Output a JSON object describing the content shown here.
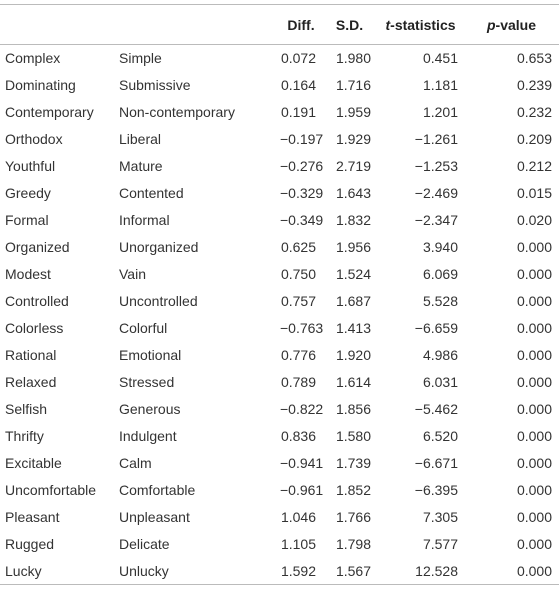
{
  "table": {
    "header": [
      "Diff.",
      "S.D.",
      {
        "italic": "t",
        "text": "-statistics"
      },
      {
        "italic": "p",
        "text": "-value"
      }
    ],
    "rows": [
      [
        "Complex",
        "Simple",
        "0.072",
        "1.980",
        "0.451",
        "0.653"
      ],
      [
        "Dominating",
        "Submissive",
        "0.164",
        "1.716",
        "1.181",
        "0.239"
      ],
      [
        "Contemporary",
        "Non-contemporary",
        "0.191",
        "1.959",
        "1.201",
        "0.232"
      ],
      [
        "Orthodox",
        "Liberal",
        "−0.197",
        "1.929",
        "−1.261",
        "0.209"
      ],
      [
        "Youthful",
        "Mature",
        "−0.276",
        "2.719",
        "−1.253",
        "0.212"
      ],
      [
        "Greedy",
        "Contented",
        "−0.329",
        "1.643",
        "−2.469",
        "0.015"
      ],
      [
        "Formal",
        "Informal",
        "−0.349",
        "1.832",
        "−2.347",
        "0.020"
      ],
      [
        "Organized",
        "Unorganized",
        "0.625",
        "1.956",
        "3.940",
        "0.000"
      ],
      [
        "Modest",
        "Vain",
        "0.750",
        "1.524",
        "6.069",
        "0.000"
      ],
      [
        "Controlled",
        "Uncontrolled",
        "0.757",
        "1.687",
        "5.528",
        "0.000"
      ],
      [
        "Colorless",
        "Colorful",
        "−0.763",
        "1.413",
        "−6.659",
        "0.000"
      ],
      [
        "Rational",
        "Emotional",
        "0.776",
        "1.920",
        "4.986",
        "0.000"
      ],
      [
        "Relaxed",
        "Stressed",
        "0.789",
        "1.614",
        "6.031",
        "0.000"
      ],
      [
        "Selfish",
        "Generous",
        "−0.822",
        "1.856",
        "−5.462",
        "0.000"
      ],
      [
        "Thrifty",
        "Indulgent",
        "0.836",
        "1.580",
        "6.520",
        "0.000"
      ],
      [
        "Excitable",
        "Calm",
        "−0.941",
        "1.739",
        "−6.671",
        "0.000"
      ],
      [
        "Uncomfortable",
        "Comfortable",
        "−0.961",
        "1.852",
        "−6.395",
        "0.000"
      ],
      [
        "Pleasant",
        "Unpleasant",
        "1.046",
        "1.766",
        "7.305",
        "0.000"
      ],
      [
        "Rugged",
        "Delicate",
        "1.105",
        "1.798",
        "7.577",
        "0.000"
      ],
      [
        "Lucky",
        "Unlucky",
        "1.592",
        "1.567",
        "12.528",
        "0.000"
      ]
    ]
  }
}
